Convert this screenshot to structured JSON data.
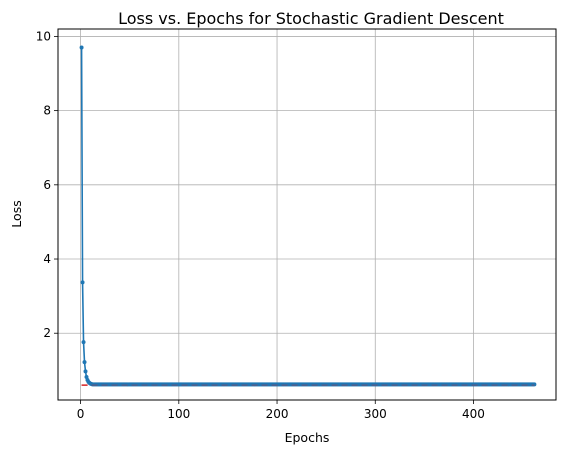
{
  "chart_data": {
    "type": "line",
    "title": "Loss vs. Epochs for Stochastic Gradient Descent",
    "xlabel": "Epochs",
    "ylabel": "Loss",
    "xlim": [
      -23,
      484
    ],
    "ylim": [
      0.2,
      10.2
    ],
    "xticks": [
      0,
      100,
      200,
      300,
      400
    ],
    "yticks": [
      2,
      4,
      6,
      8,
      10
    ],
    "grid": true,
    "legend": "none",
    "series": [
      {
        "style": "line-with-dot-markers",
        "color": "#1f77b4",
        "x_start": 1,
        "x_end": 462,
        "head": [
          [
            1,
            9.7
          ],
          [
            2,
            3.37
          ],
          [
            3,
            1.76
          ],
          [
            4,
            1.22
          ],
          [
            5,
            0.97
          ],
          [
            6,
            0.82
          ],
          [
            7,
            0.74
          ],
          [
            8,
            0.69
          ],
          [
            9,
            0.66
          ],
          [
            10,
            0.64
          ],
          [
            11,
            0.63
          ],
          [
            12,
            0.62
          ]
        ],
        "plateau_value": 0.62
      },
      {
        "style": "dashed-line",
        "color": "#d62728",
        "x": [
          1,
          462
        ],
        "y": [
          0.6,
          0.6
        ]
      }
    ]
  }
}
